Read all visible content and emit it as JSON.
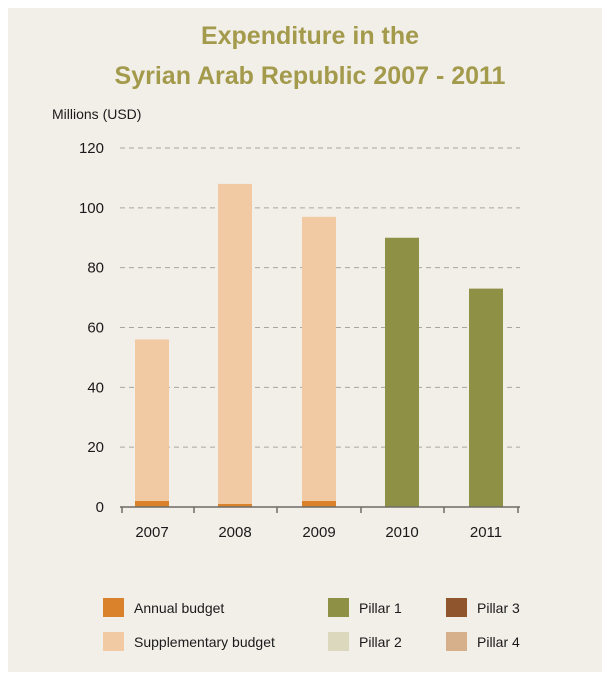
{
  "colors": {
    "background": "#f2efe9",
    "title": "#a39a4c",
    "grid": "#a8a6a0",
    "axis": "#6e6c68",
    "text": "#1a1a1a",
    "annual_budget": "#d9822b",
    "supplementary_budget": "#f1c9a3",
    "pillar_1": "#8e9045",
    "pillar_2": "#dcd8bd",
    "pillar_3": "#8f552d",
    "pillar_4": "#d6b08a"
  },
  "chart_data": {
    "type": "bar",
    "stacked": true,
    "title_lines": [
      "Expenditure in the",
      "Syrian Arab Republic 2007 - 2011"
    ],
    "ylabel": "Millions (USD)",
    "xlabel": "",
    "ylim": [
      0,
      120
    ],
    "yticks": [
      0,
      20,
      40,
      60,
      80,
      100,
      120
    ],
    "grid": true,
    "legend_position": "bottom",
    "categories": [
      "2007",
      "2008",
      "2009",
      "2010",
      "2011"
    ],
    "series": [
      {
        "name": "Annual budget",
        "color_key": "annual_budget",
        "values": [
          2,
          1,
          2,
          0,
          0
        ]
      },
      {
        "name": "Supplementary budget",
        "color_key": "supplementary_budget",
        "values": [
          54,
          107,
          95,
          0,
          0
        ]
      },
      {
        "name": "Pillar 1",
        "color_key": "pillar_1",
        "values": [
          0,
          0,
          0,
          90,
          73
        ]
      },
      {
        "name": "Pillar 2",
        "color_key": "pillar_2",
        "values": [
          0,
          0,
          0,
          0,
          0
        ]
      },
      {
        "name": "Pillar 3",
        "color_key": "pillar_3",
        "values": [
          0,
          0,
          0,
          0,
          0
        ]
      },
      {
        "name": "Pillar 4",
        "color_key": "pillar_4",
        "values": [
          0,
          0,
          0,
          0,
          0
        ]
      }
    ]
  }
}
